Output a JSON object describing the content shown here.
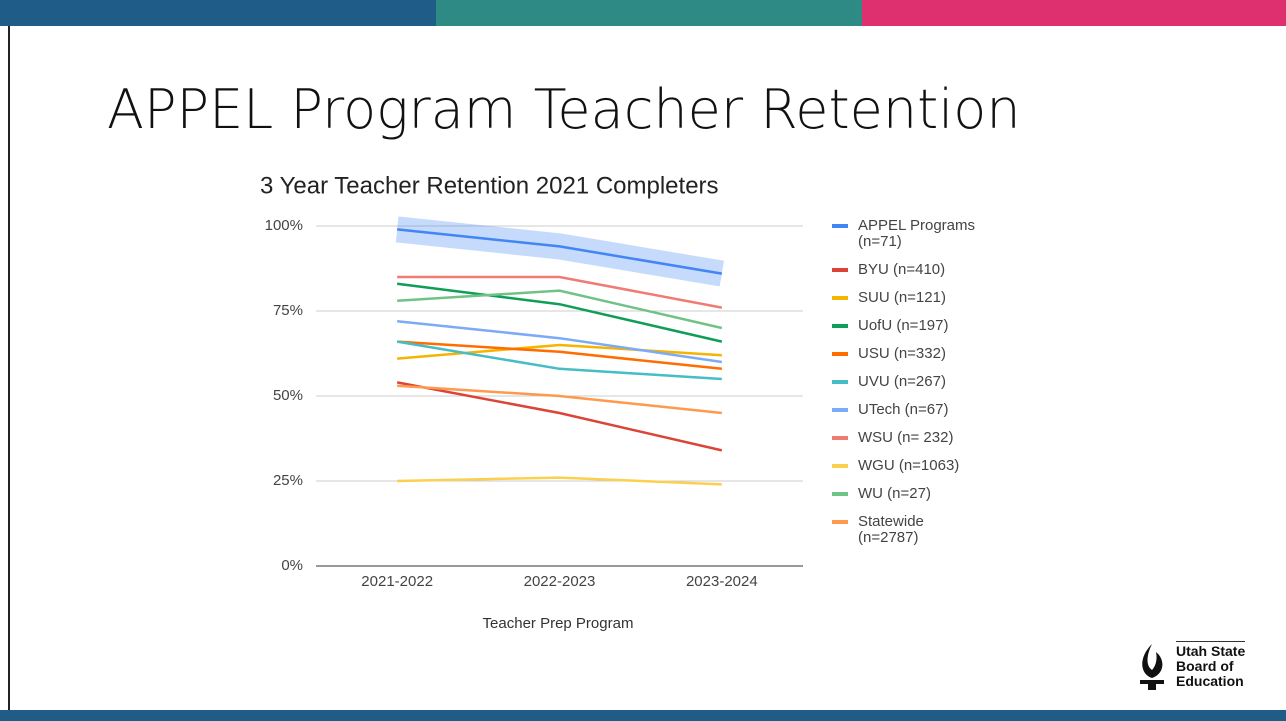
{
  "slide_title": "APPEL Program Teacher Retention",
  "logo": [
    "Utah State",
    "Board of",
    "Education"
  ],
  "chart_data": {
    "type": "line",
    "title": "3 Year Teacher Retention 2021 Completers",
    "x_label": "Teacher Prep Program",
    "categories": [
      "2021-2022",
      "2022-2023",
      "2023-2024"
    ],
    "ylim": [
      0,
      100
    ],
    "yticks": [
      {
        "value": 0,
        "label": "0%"
      },
      {
        "value": 25,
        "label": "25%"
      },
      {
        "value": 50,
        "label": "50%"
      },
      {
        "value": 75,
        "label": "75%"
      },
      {
        "value": 100,
        "label": "100%"
      }
    ],
    "grid": true,
    "legend": "right",
    "highlight": "APPEL Programs (n=71)",
    "series": [
      {
        "name": "APPEL Programs (n=71)",
        "color": "#4285f4",
        "values": [
          99,
          94,
          86
        ]
      },
      {
        "name": "BYU (n=410)",
        "color": "#db4437",
        "values": [
          54,
          45,
          34
        ]
      },
      {
        "name": "SUU (n=121)",
        "color": "#f4b400",
        "values": [
          61,
          65,
          62
        ]
      },
      {
        "name": "UofU (n=197)",
        "color": "#0f9d58",
        "values": [
          83,
          77,
          66
        ]
      },
      {
        "name": "USU (n=332)",
        "color": "#ff6d01",
        "values": [
          66,
          63,
          58
        ]
      },
      {
        "name": "UVU (n=267)",
        "color": "#46bdc6",
        "values": [
          66,
          58,
          55
        ]
      },
      {
        "name": "UTech (n=67)",
        "color": "#7baaf7",
        "values": [
          72,
          67,
          60
        ]
      },
      {
        "name": "WSU (n= 232)",
        "color": "#f07b72",
        "values": [
          85,
          85,
          76
        ]
      },
      {
        "name": "WGU (n=1063)",
        "color": "#fcd04f",
        "values": [
          25,
          26,
          24
        ]
      },
      {
        "name": "WU (n=27)",
        "color": "#71c287",
        "values": [
          78,
          81,
          70
        ]
      },
      {
        "name": "Statewide (n=2787)",
        "color": "#ff994d",
        "values": [
          53,
          50,
          45
        ]
      }
    ]
  }
}
